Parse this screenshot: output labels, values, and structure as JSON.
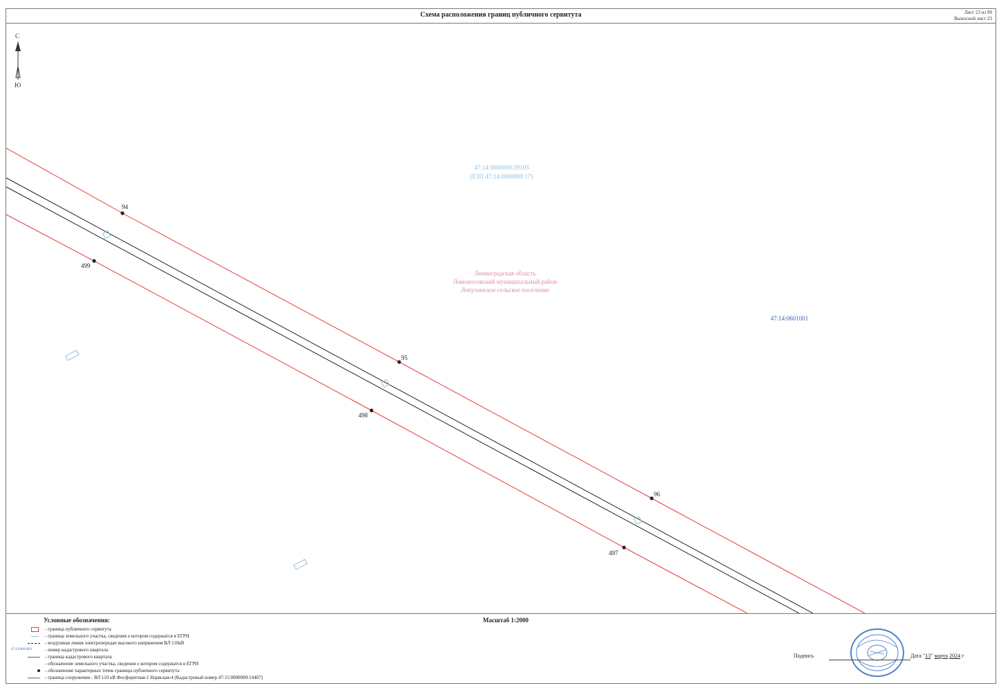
{
  "header": {
    "title": "Схема расположения границ публичного сервитута",
    "sheet": "Лист 23 из 99",
    "sheet_sub": "Выносной лист 23"
  },
  "north_arrow": {
    "north": "С",
    "south": "Ю"
  },
  "map": {
    "parcel_id": "47:14:0000000:39105",
    "parcel_egp": "(ЕЗП 47:14:0000000:17)",
    "region_lines": [
      "Ленинградская область",
      "Ломоносовский муниципальный район",
      "Лопухинское сельское поселение"
    ],
    "quarter_id": "47:14:0601001",
    "points": {
      "p94": "94",
      "p95": "95",
      "p96": "96",
      "p497": "497",
      "p498": "498",
      "p499": "499"
    }
  },
  "legend": {
    "title": "Условные обозначения:",
    "items": [
      "- граница публичного сервитута",
      "- граница земельного участка, сведения о котором содержатся в ЕГРН",
      "- воздушная линия электропередач высокого напряжения ВЛ 110кВ",
      "- номер кадастрового квартала",
      "- граница кадастрового квартала",
      "- обозначение земельного участка, сведения о котором содержатся в ЕГРН",
      "- обозначение характерных точек границы публичного сервитута",
      "- граница сооружения - ВЛ 110 кВ Фосфоритная-1 Нарвская-4 (Кадастровый номер 47:15:0000000:14467)"
    ],
    "quarter_symbol_label": "47:14:0601001"
  },
  "footer": {
    "scale": "Масштаб 1:2000",
    "signature_label": "Подпись",
    "date_prefix": "Дата \"",
    "date_day": "13",
    "date_mid": "\"",
    "date_month": "марта",
    "date_year": "2024",
    "date_suffix": "г"
  },
  "colors": {
    "servitude": "#e83a3a",
    "parcel": "#8fbfdc",
    "region": "#d98bb0",
    "quarter": "#3a5fbf",
    "line": "#222222",
    "stamp": "#4a7fd0"
  }
}
